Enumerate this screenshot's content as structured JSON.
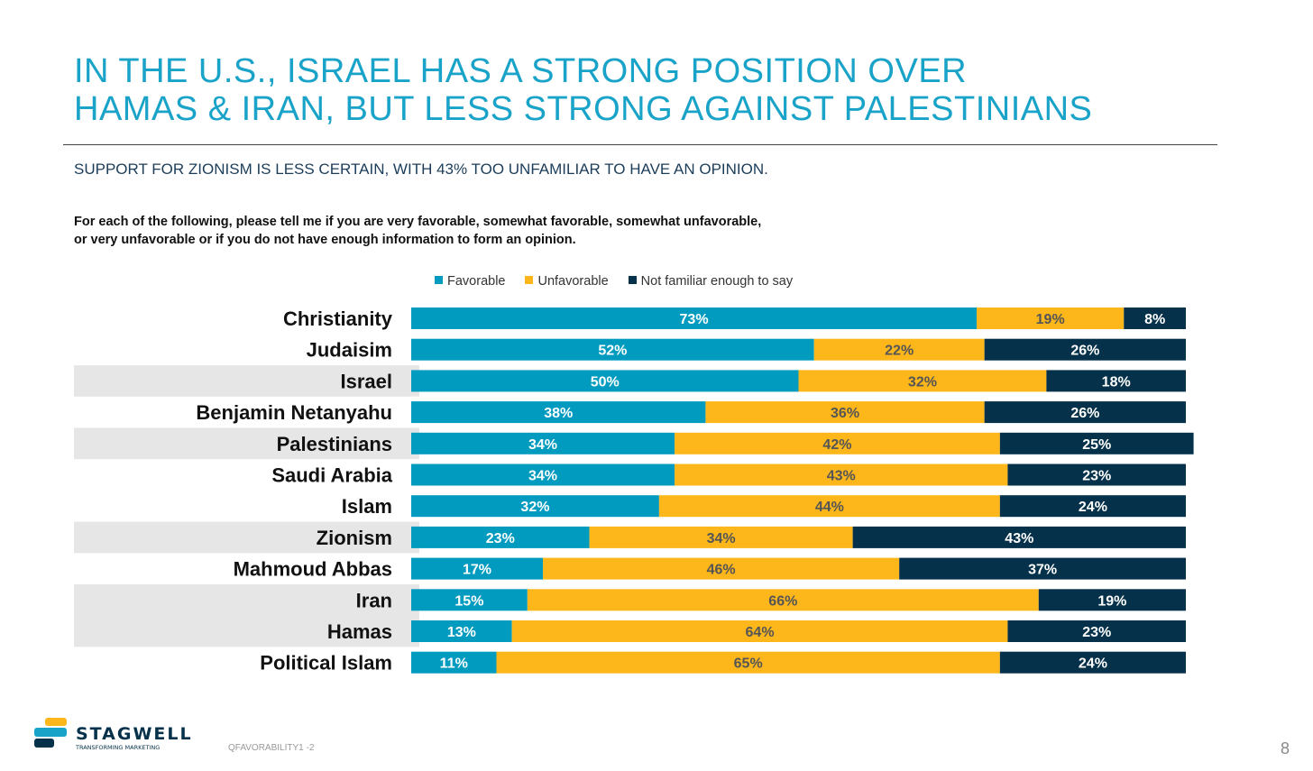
{
  "title_lines": [
    "IN THE U.S., ISRAEL HAS A STRONG POSITION OVER",
    "HAMAS & IRAN, BUT LESS STRONG AGAINST PALESTINIANS"
  ],
  "subtitle": "SUPPORT FOR ZIONISM IS LESS CERTAIN, WITH 43% TOO UNFAMILIAR TO HAVE AN OPINION.",
  "question_lines": [
    "For each of the following, please tell me if you are very favorable, somewhat favorable, somewhat unfavorable,",
    "or very unfavorable or if you do not have enough information to form an opinion."
  ],
  "footer": {
    "code": "QFAVORABILITY1 -2",
    "page": "8",
    "logo_text": "STAGWELL",
    "logo_tagline": "TRANSFORMING MARKETING"
  },
  "colors": {
    "favorable": "#019bbf",
    "unfavorable": "#fdb71b",
    "unfamiliar": "#05314a",
    "title": "#1aa3c8",
    "band": "#e6e6e6"
  },
  "chart_data": {
    "type": "bar",
    "orientation": "horizontal",
    "stacked": true,
    "legend": [
      "Favorable",
      "Unfavorable",
      "Not familiar enough to say"
    ],
    "legend_position": "top",
    "categories": [
      "Christianity",
      "Judaisim",
      "Israel",
      "Benjamin Netanyahu",
      "Palestinians",
      "Saudi Arabia",
      "Islam",
      "Zionism",
      "Mahmoud Abbas",
      "Iran",
      "Hamas",
      "Political Islam"
    ],
    "highlighted": [
      false,
      false,
      true,
      false,
      true,
      false,
      false,
      true,
      false,
      true,
      true,
      false
    ],
    "series": [
      {
        "name": "Favorable",
        "values": [
          73,
          52,
          50,
          38,
          34,
          34,
          32,
          23,
          17,
          15,
          13,
          11
        ]
      },
      {
        "name": "Unfavorable",
        "values": [
          19,
          22,
          32,
          36,
          42,
          43,
          44,
          34,
          46,
          66,
          64,
          65
        ]
      },
      {
        "name": "Not familiar enough to say",
        "values": [
          8,
          26,
          18,
          26,
          25,
          23,
          24,
          43,
          37,
          19,
          23,
          24
        ]
      }
    ],
    "xlim": [
      0,
      100
    ]
  }
}
